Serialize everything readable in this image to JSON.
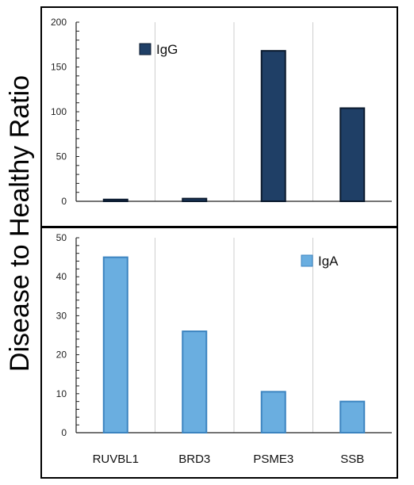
{
  "y_axis_label": "Disease to Healthy Ratio",
  "chart_data": [
    {
      "type": "bar",
      "categories": [
        "RUVBL1",
        "BRD3",
        "PSME3",
        "SSB"
      ],
      "series": [
        {
          "name": "IgG",
          "values": [
            2,
            3,
            168,
            104
          ]
        }
      ],
      "ylim": [
        0,
        200
      ],
      "yticks": [
        0,
        50,
        100,
        150,
        200
      ],
      "ylabel": "Disease to Healthy Ratio",
      "grid": "vertical",
      "legend": "top-left",
      "colors": {
        "fill": "#1f3f66",
        "stroke": "#0b1a2e"
      }
    },
    {
      "type": "bar",
      "categories": [
        "RUVBL1",
        "BRD3",
        "PSME3",
        "SSB"
      ],
      "series": [
        {
          "name": "IgA",
          "values": [
            45,
            26,
            10.5,
            8
          ]
        }
      ],
      "ylim": [
        0,
        50
      ],
      "yticks": [
        0,
        10,
        20,
        30,
        40,
        50
      ],
      "ylabel": "Disease to Healthy Ratio",
      "grid": "vertical",
      "legend": "top-right",
      "colors": {
        "fill": "#6aaee0",
        "stroke": "#3c84c0"
      }
    }
  ]
}
